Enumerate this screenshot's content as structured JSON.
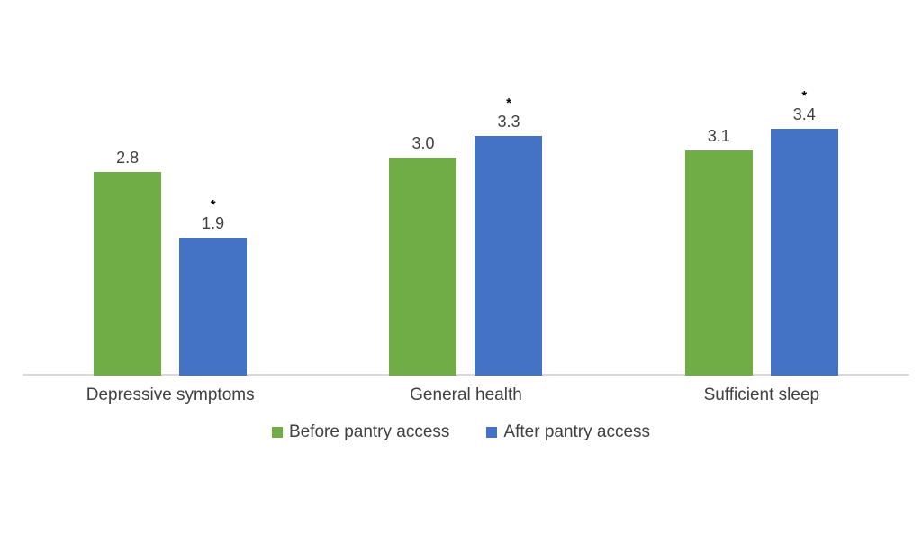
{
  "chart_data": {
    "type": "bar",
    "categories": [
      "Depressive symptoms",
      "General health",
      "Sufficient sleep"
    ],
    "series": [
      {
        "name": "Before pantry access",
        "color": "#70AD47",
        "values": [
          2.8,
          3.0,
          3.1
        ],
        "value_labels": [
          "2.8",
          "3.0",
          "3.1"
        ],
        "significant": [
          false,
          false,
          false
        ]
      },
      {
        "name": "After pantry access",
        "color": "#4472C4",
        "values": [
          1.9,
          3.3,
          3.4
        ],
        "value_labels": [
          "1.9",
          "3.3",
          "3.4"
        ],
        "significant": [
          true,
          true,
          true
        ]
      }
    ],
    "significance_marker": "*",
    "title": "",
    "xlabel": "",
    "ylabel": "",
    "ylim": [
      0,
      3.5
    ],
    "grid": false,
    "y_axis_visible": false,
    "legend_position": "bottom",
    "baseline_color": "#D9D9D9",
    "label_color": "#3f3f3f"
  }
}
